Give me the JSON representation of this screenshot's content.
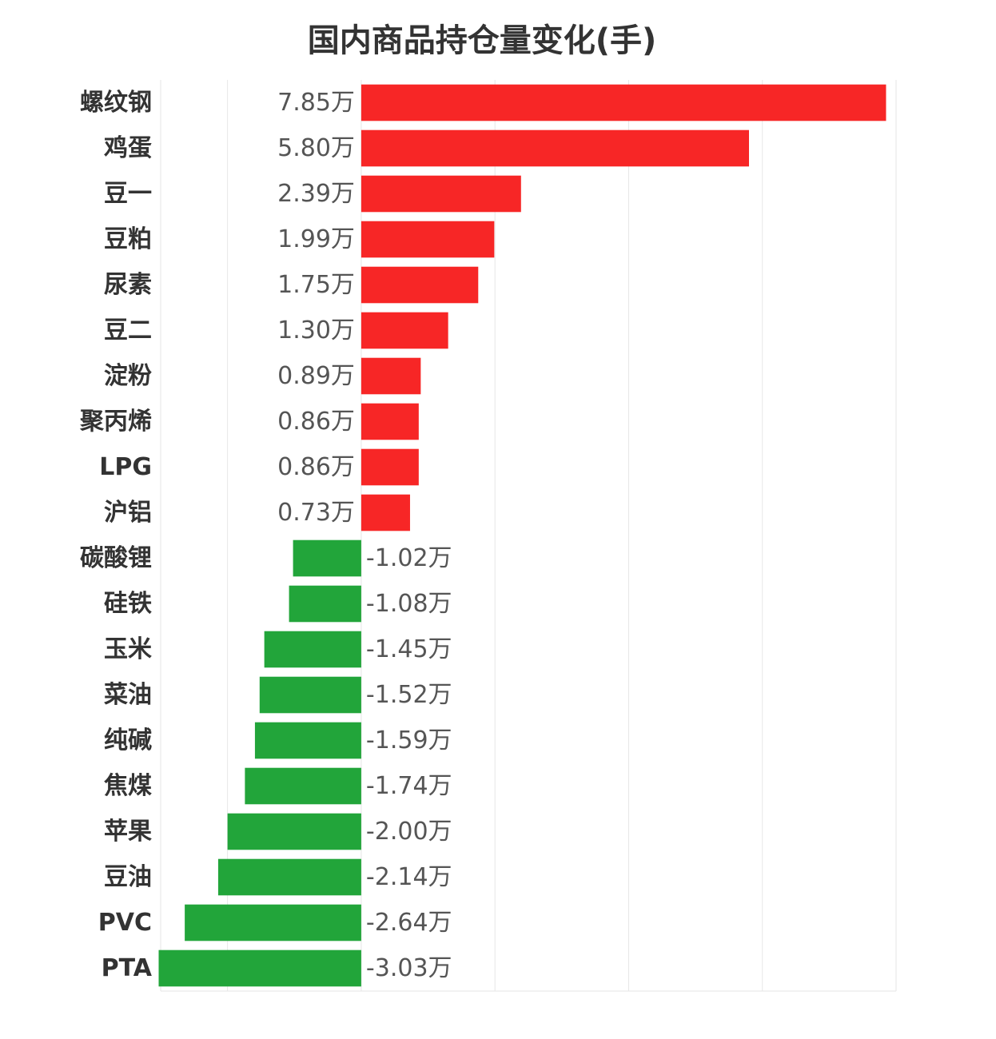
{
  "chart_data": {
    "type": "bar",
    "orientation": "horizontal",
    "title": "国内商品持仓量变化(手)",
    "xlim": [
      -3.0,
      8.0
    ],
    "grid": true,
    "colors": {
      "positive": "#f72626",
      "negative": "#22a53a"
    },
    "categories": [
      "螺纹钢",
      "鸡蛋",
      "豆一",
      "豆粕",
      "尿素",
      "豆二",
      "淀粉",
      "聚丙烯",
      "LPG",
      "沪铝",
      "碳酸锂",
      "硅铁",
      "玉米",
      "菜油",
      "纯碱",
      "焦煤",
      "苹果",
      "豆油",
      "PVC",
      "PTA"
    ],
    "values": [
      7.85,
      5.8,
      2.39,
      1.99,
      1.75,
      1.3,
      0.89,
      0.86,
      0.86,
      0.73,
      -1.02,
      -1.08,
      -1.45,
      -1.52,
      -1.59,
      -1.74,
      -2.0,
      -2.14,
      -2.64,
      -3.03
    ],
    "value_labels": [
      "7.85万",
      "5.80万",
      "2.39万",
      "1.99万",
      "1.75万",
      "1.30万",
      "0.89万",
      "0.86万",
      "0.86万",
      "0.73万",
      "-1.02万",
      "-1.08万",
      "-1.45万",
      "-1.52万",
      "-1.59万",
      "-1.74万",
      "-2.00万",
      "-2.14万",
      "-2.64万",
      "-3.03万"
    ]
  }
}
